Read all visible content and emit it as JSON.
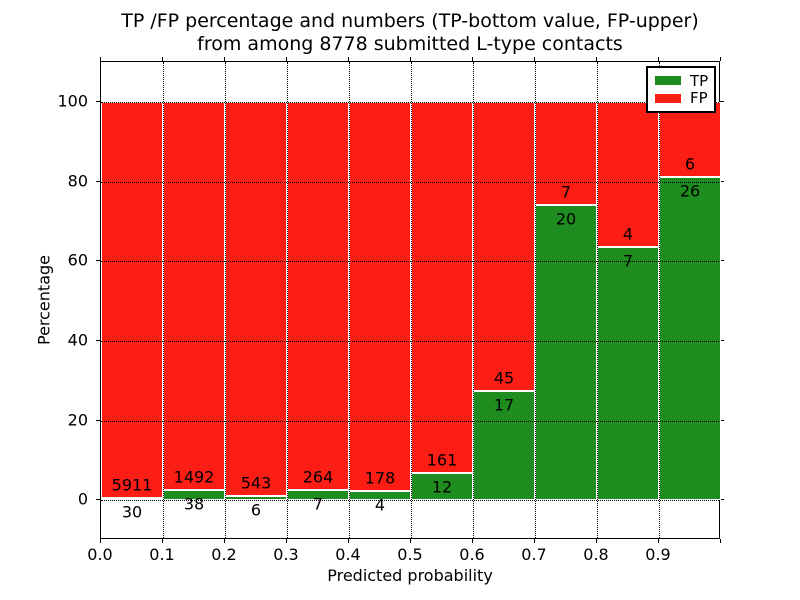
{
  "title": {
    "line1": "TP /FP percentage and numbers (TP-bottom value, FP-upper)",
    "line2": "from among 8778 submitted L-type contacts"
  },
  "axes": {
    "xlabel": "Predicted probability",
    "ylabel": "Percentage",
    "xtick_labels": [
      "0.0",
      "0.1",
      "0.2",
      "0.3",
      "0.4",
      "0.5",
      "0.6",
      "0.7",
      "0.8",
      "0.9"
    ],
    "ytick_labels": [
      "0",
      "20",
      "40",
      "60",
      "80",
      "100"
    ]
  },
  "legend": {
    "entries": [
      {
        "label": "TP",
        "color": "#1f8c1f",
        "swatch": "green-swatch"
      },
      {
        "label": "FP",
        "color": "#fc1d15",
        "swatch": "red-swatch"
      }
    ]
  },
  "chart_data": {
    "type": "bar",
    "stacked": true,
    "normalized_to": 100,
    "title": "TP /FP percentage and numbers (TP-bottom value, FP-upper) from among 8778 submitted L-type contacts",
    "xlabel": "Predicted probability",
    "ylabel": "Percentage",
    "total_submitted": 8778,
    "bin_starts": [
      0.0,
      0.1,
      0.2,
      0.3,
      0.4,
      0.5,
      0.6,
      0.7,
      0.8,
      0.9
    ],
    "bin_width": 0.1,
    "series": [
      {
        "name": "TP",
        "color": "#1f8c1f",
        "position": "bottom",
        "counts": [
          30,
          38,
          6,
          7,
          4,
          12,
          17,
          20,
          7,
          26
        ]
      },
      {
        "name": "FP",
        "color": "#fc1d15",
        "position": "top",
        "counts": [
          5911,
          1492,
          543,
          264,
          178,
          161,
          45,
          7,
          4,
          6
        ]
      }
    ],
    "tp_percent_of_bin": [
      0.5,
      2.5,
      1.1,
      2.6,
      2.2,
      6.9,
      27.4,
      74.1,
      63.6,
      81.3
    ],
    "xlim": [
      0.0,
      1.0
    ],
    "ylim": [
      -10,
      110
    ],
    "xticks": [
      0.0,
      0.1,
      0.2,
      0.3,
      0.4,
      0.5,
      0.6,
      0.7,
      0.8,
      0.9
    ],
    "yticks": [
      0,
      20,
      40,
      60,
      80,
      100
    ],
    "grid": "dotted black, both axes",
    "bar_edge_color": "#ffffff",
    "legend_position": "upper right",
    "annotation_scheme": "FP count printed just above each TP/FP boundary, TP count just below"
  }
}
